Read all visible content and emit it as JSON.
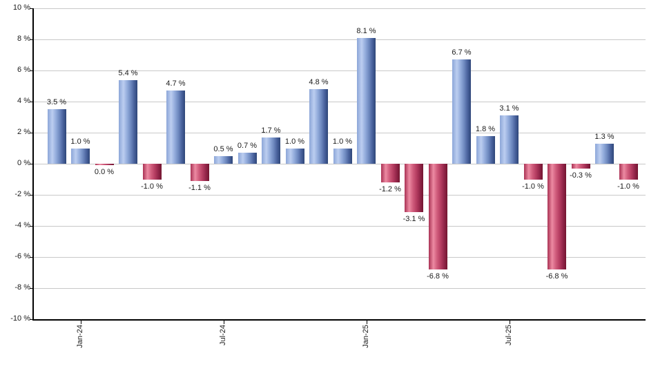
{
  "chart_data": {
    "type": "bar",
    "title": "",
    "xlabel": "",
    "ylabel": "",
    "values": [
      3.5,
      1.0,
      0.0,
      5.4,
      -1.0,
      4.7,
      -1.1,
      0.5,
      0.7,
      1.7,
      1.0,
      4.8,
      1.0,
      8.1,
      -1.2,
      -3.1,
      -6.8,
      6.7,
      1.8,
      3.1,
      -1.0,
      -6.8,
      -0.3,
      1.3,
      -1.0
    ],
    "value_labels": [
      "3.5 %",
      "1.0 %",
      "0.0 %",
      "5.4 %",
      "-1.0 %",
      "4.7 %",
      "-1.1 %",
      "0.5 %",
      "0.7 %",
      "1.7 %",
      "1.0 %",
      "4.8 %",
      "1.0 %",
      "8.1 %",
      "-1.2 %",
      "-3.1 %",
      "-6.8 %",
      "6.7 %",
      "1.8 %",
      "3.1 %",
      "-1.0 %",
      "-6.8 %",
      "-0.3 %",
      "1.3 %",
      "-1.0 %"
    ],
    "bar_signs": [
      "pos",
      "pos",
      "neg",
      "pos",
      "neg",
      "pos",
      "neg",
      "pos",
      "pos",
      "pos",
      "pos",
      "pos",
      "pos",
      "pos",
      "neg",
      "neg",
      "neg",
      "pos",
      "pos",
      "pos",
      "neg",
      "neg",
      "neg",
      "pos",
      "neg"
    ],
    "x_ticks": [
      {
        "label": "Jan-24",
        "bar_index": 1
      },
      {
        "label": "Jul-24",
        "bar_index": 7
      },
      {
        "label": "Jan-25",
        "bar_index": 13
      },
      {
        "label": "Jul-25",
        "bar_index": 19
      }
    ],
    "y_axis": {
      "labels": [
        "10 %",
        "8 %",
        "6 %",
        "4 %",
        "2 %",
        "0 %",
        "-2 %",
        "-4 %",
        "-6 %",
        "-8 %",
        "-10 %"
      ],
      "max": 10,
      "min": -10,
      "step": 2,
      "format": "percent"
    },
    "legend": "none",
    "grid": "horizontal",
    "colors": {
      "positive_bar_base": "#7A97CE",
      "positive_bar_light": "#BCCEF0",
      "positive_bar_dark": "#2E4678",
      "negative_bar_base": "#C2405E",
      "negative_bar_light": "#EC8AA2",
      "negative_bar_dark": "#731530",
      "gridline": "#C8C8C8",
      "axis": "#000000",
      "text": "#1A1A1A",
      "background": "#FFFFFF"
    }
  }
}
